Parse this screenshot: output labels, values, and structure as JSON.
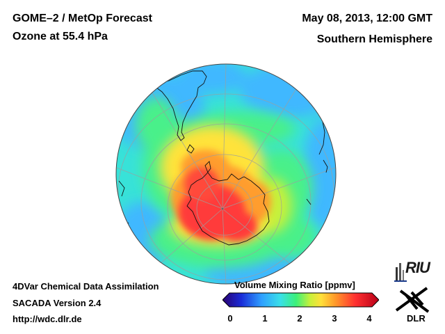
{
  "header": {
    "title_left_1": "GOME–2 / MetOp Forecast",
    "title_left_2": "Ozone at 55.4 hPa",
    "title_right_1": "May 08, 2013, 12:00 GMT",
    "title_right_2": "Southern Hemisphere"
  },
  "footer": {
    "line1": "4DVar Chemical Data Assimilation",
    "line2": "SACADA Version 2.4",
    "line3": "http://wdc.dlr.de"
  },
  "colorbar": {
    "title": "Volume Mixing Ratio [ppmv]",
    "ticks": [
      "0",
      "1",
      "2",
      "3",
      "4"
    ],
    "stops": [
      "#2a0070",
      "#1a2cd8",
      "#2fa0ff",
      "#39e0e8",
      "#3bf07a",
      "#c8f03a",
      "#ffe03a",
      "#ff9a2a",
      "#ff3030",
      "#b80018"
    ]
  },
  "logos": {
    "riu": "RIU",
    "dlr": "DLR"
  },
  "map": {
    "projection": "orthographic",
    "hemisphere": "south",
    "colors": {
      "background_field": "#38e2d8",
      "low": "#3fb8ff",
      "mid": "#48f08a",
      "high": "#ffe33a",
      "higher": "#ff9d2e",
      "peak": "#ff3b3b"
    }
  }
}
